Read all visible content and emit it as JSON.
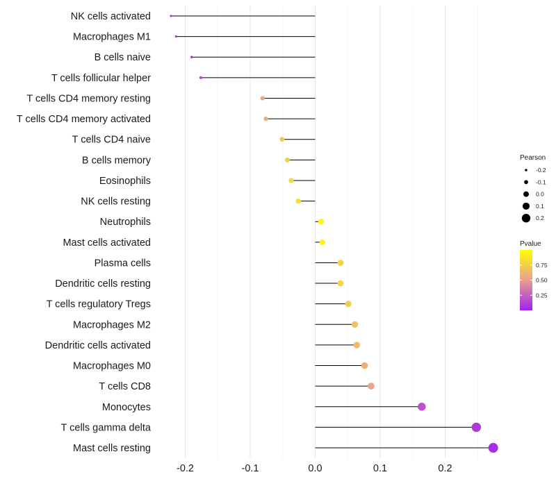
{
  "chart_data": {
    "type": "lollipop",
    "xlim": [
      -0.225,
      0.275
    ],
    "x_ticks": [
      -0.2,
      -0.1,
      0.0,
      0.1,
      0.2
    ],
    "x_tick_labels": [
      "-0.2",
      "-0.1",
      "0.0",
      "0.1",
      "0.2"
    ],
    "categories": [
      "NK cells activated",
      "Macrophages M1",
      "B cells naive",
      "T cells follicular helper",
      "T cells CD4 memory resting",
      "T cells CD4 memory activated",
      "T cells CD4 naive",
      "B cells memory",
      "Eosinophils",
      "NK cells resting",
      "Neutrophils",
      "Mast cells activated",
      "Plasma cells",
      "Dendritic cells resting",
      "T cells regulatory  Tregs ",
      "Macrophages M2",
      "Dendritic cells activated",
      "Macrophages M0",
      "T cells CD8",
      "Monocytes",
      "T cells gamma delta",
      "Mast cells resting"
    ],
    "pearson": [
      -0.222,
      -0.214,
      -0.19,
      -0.176,
      -0.081,
      -0.076,
      -0.051,
      -0.043,
      -0.037,
      -0.026,
      0.009,
      0.011,
      0.039,
      0.039,
      0.051,
      0.061,
      0.064,
      0.076,
      0.086,
      0.164,
      0.248,
      0.274
    ],
    "pvalue": [
      0.02,
      0.04,
      0.1,
      0.15,
      0.55,
      0.58,
      0.72,
      0.76,
      0.8,
      0.84,
      0.95,
      0.94,
      0.78,
      0.78,
      0.74,
      0.68,
      0.66,
      0.58,
      0.52,
      0.2,
      0.1,
      0.05
    ],
    "size_legend": {
      "title": "Pearson",
      "values": [
        -0.2,
        -0.1,
        0.0,
        0.1,
        0.2
      ],
      "labels": [
        "-0.2",
        "-0.1",
        "0.0",
        "0.1",
        "0.2"
      ]
    },
    "color_legend": {
      "title": "Pvalue",
      "range": [
        0.0,
        1.0
      ],
      "ticks": [
        0.25,
        0.5,
        0.75
      ],
      "tick_labels": [
        "0.25",
        "0.50",
        "0.75"
      ],
      "colors": [
        "#a020f0",
        "#e6a091",
        "#ffff00"
      ]
    }
  }
}
